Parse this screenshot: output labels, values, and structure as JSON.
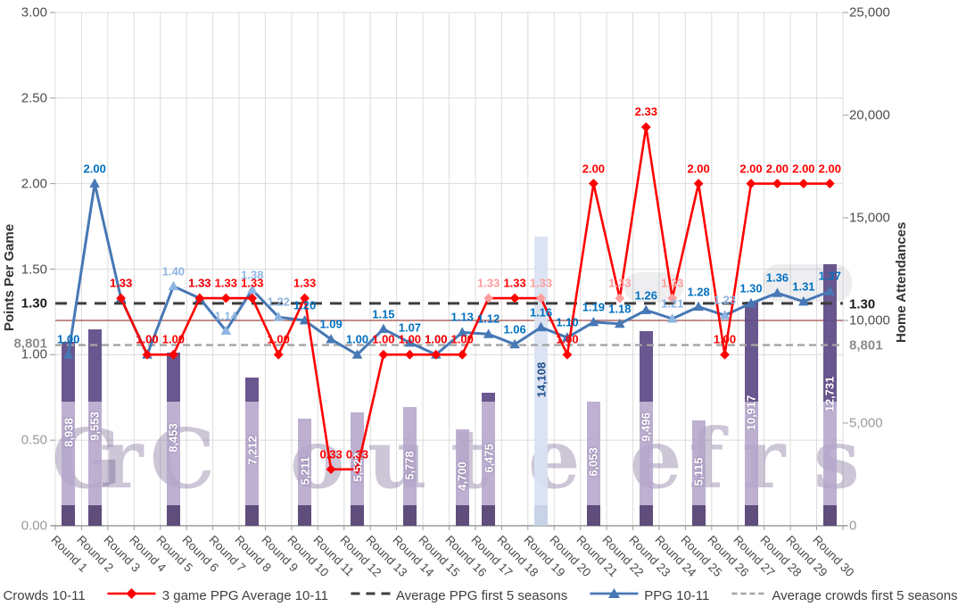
{
  "chart_data": {
    "type": "combo-bar-line",
    "categories": [
      "Round 1",
      "Round 2",
      "Round 3",
      "Round 4",
      "Round 5",
      "Round 6",
      "Round 7",
      "Round 8",
      "Round 9",
      "Round 10",
      "Round 11",
      "Round 12",
      "Round 13",
      "Round 14",
      "Round 15",
      "Round 16",
      "Round 17",
      "Round 18",
      "Round 19",
      "Round 20",
      "Round 21",
      "Round 22",
      "Round 23",
      "Round 24",
      "Round 25",
      "Round 26",
      "Round 27",
      "Round 28",
      "Round 29",
      "Round 30"
    ],
    "series": [
      {
        "name": "Crowds 10-11",
        "type": "bar",
        "axis": "right",
        "color_dark": "#5E4A86",
        "color_light": "#B4A5CB",
        "color_foot": "#564374",
        "highlight_round": 19,
        "highlight_color": "#D9E2F2",
        "highlight_foot": "#C3CFE6",
        "highlight_label_color": "#1F4E8C",
        "points": {
          "1": 8938,
          "2": 9553,
          "5": 8453,
          "8": 7212,
          "10": 5211,
          "12": 5529,
          "14": 5778,
          "16": 4700,
          "17": 6475,
          "19": 14108,
          "21": 6053,
          "23": 9496,
          "25": 5115,
          "27": 10917,
          "30": 12731
        },
        "labels": {
          "1": "8,938",
          "2": "9,553",
          "5": "8,453",
          "8": "7,212",
          "10": "5,211",
          "12": "5,529",
          "14": "5,778",
          "16": "4,700",
          "17": "6,475",
          "19": "14,108",
          "21": "6,053",
          "23": "9,496",
          "25": "5,115",
          "27": "10,917",
          "30": "12,731"
        }
      },
      {
        "name": "3 game PPG Average 10-11",
        "type": "line",
        "axis": "left",
        "color": "#FF0000",
        "light_color": "#FF9D9D",
        "marker": "diamond",
        "start_round": 3,
        "values": [
          1.33,
          1.0,
          1.0,
          1.33,
          1.33,
          1.33,
          1.0,
          1.33,
          0.33,
          0.33,
          1.0,
          1.0,
          1.0,
          1.0,
          1.33,
          1.33,
          1.33,
          1.0,
          2.0,
          1.33,
          2.33,
          1.33,
          2.0,
          1.0,
          2.0,
          2.0,
          2.0,
          2.0
        ],
        "light_label_rounds": [
          17,
          19,
          22,
          24
        ]
      },
      {
        "name": "Average PPG first 5 seasons",
        "type": "dashed-line",
        "axis": "left",
        "value": 1.3,
        "color": "#3D3D3D"
      },
      {
        "name": "PPG 10-11",
        "type": "line",
        "axis": "left",
        "color": "#4778B5",
        "light_color": "#8DB4E2",
        "label_color": "#0070C0",
        "marker": "triangle",
        "start_round": 1,
        "values": [
          1.0,
          2.0,
          1.33,
          1.0,
          1.4,
          1.33,
          1.14,
          1.38,
          1.22,
          1.2,
          1.09,
          1.0,
          1.15,
          1.07,
          1.0,
          1.13,
          1.12,
          1.06,
          1.16,
          1.1,
          1.19,
          1.18,
          1.26,
          1.21,
          1.28,
          1.23,
          1.3,
          1.36,
          1.31,
          1.37
        ],
        "light_label_rounds": [
          5,
          7,
          8,
          9,
          24,
          26
        ]
      },
      {
        "name": "Average crowds first 5 seasons",
        "type": "dashed-line",
        "axis": "right",
        "value": 8801,
        "color": "#A3A3A3"
      }
    ],
    "left_axis": {
      "title": "Points Per Game",
      "min": 0,
      "max": 3,
      "ticks": [
        {
          "label": "3.00",
          "value": 3.0
        },
        {
          "label": "2.50",
          "value": 2.5
        },
        {
          "label": "2.00",
          "value": 2.0
        },
        {
          "label": "1.50",
          "value": 1.5
        },
        {
          "label": "1.00",
          "value": 1.0
        },
        {
          "label": "0.50",
          "value": 0.5,
          "faded": true
        },
        {
          "label": "0.00",
          "value": 0.0,
          "faded": true
        }
      ],
      "special_ppg_label": "1.30",
      "special_crowd_label": "8,801"
    },
    "right_axis": {
      "title": "Home Attendances",
      "min": 0,
      "max": 25000,
      "ticks": [
        {
          "label": "25,000",
          "value": 25000
        },
        {
          "label": "20,000",
          "value": 20000
        },
        {
          "label": "15,000",
          "value": 15000
        },
        {
          "label": "10,000",
          "value": 10000
        },
        {
          "label": "5,000",
          "value": 5000,
          "faded": true
        },
        {
          "label": "0",
          "value": 0,
          "faded": true
        }
      ],
      "special_ppg_label": "1.30",
      "special_crowd_label": "8,801",
      "ten_thousand_line_color": "#9C4A44"
    },
    "grid": {
      "color": "#DCDCDC",
      "v_step": 1,
      "h_step": 0.5
    }
  },
  "legend": {
    "items": [
      {
        "label": "Crowds 10-11",
        "marker": "bar-swatch",
        "color": "#6A5A9B"
      },
      {
        "label": "3 game PPG Average 10-11",
        "marker": "red-line-diamond",
        "color": "#FF0000"
      },
      {
        "label": "Average PPG first 5 seasons",
        "marker": "black-dashes",
        "color": "#3D3D3D"
      },
      {
        "label": "PPG 10-11",
        "marker": "blue-line-triangle",
        "color": "#4778B5"
      },
      {
        "label": "Average crowds first 5 seasons",
        "marker": "gray-dashes",
        "color": "#A3A3A3"
      }
    ]
  },
  "watermark": {
    "letters": [
      {
        "ch": "G",
        "x": 58
      },
      {
        "ch": "r",
        "x": 112
      },
      {
        "ch": "C",
        "x": 168
      },
      {
        "ch": "o",
        "x": 325
      },
      {
        "ch": "u",
        "x": 412
      },
      {
        "ch": "t",
        "x": 505
      },
      {
        "ch": "e",
        "x": 592
      },
      {
        "ch": "e",
        "x": 706
      },
      {
        "ch": "f",
        "x": 772
      },
      {
        "ch": "r",
        "x": 832
      },
      {
        "ch": "s",
        "x": 912
      }
    ]
  }
}
